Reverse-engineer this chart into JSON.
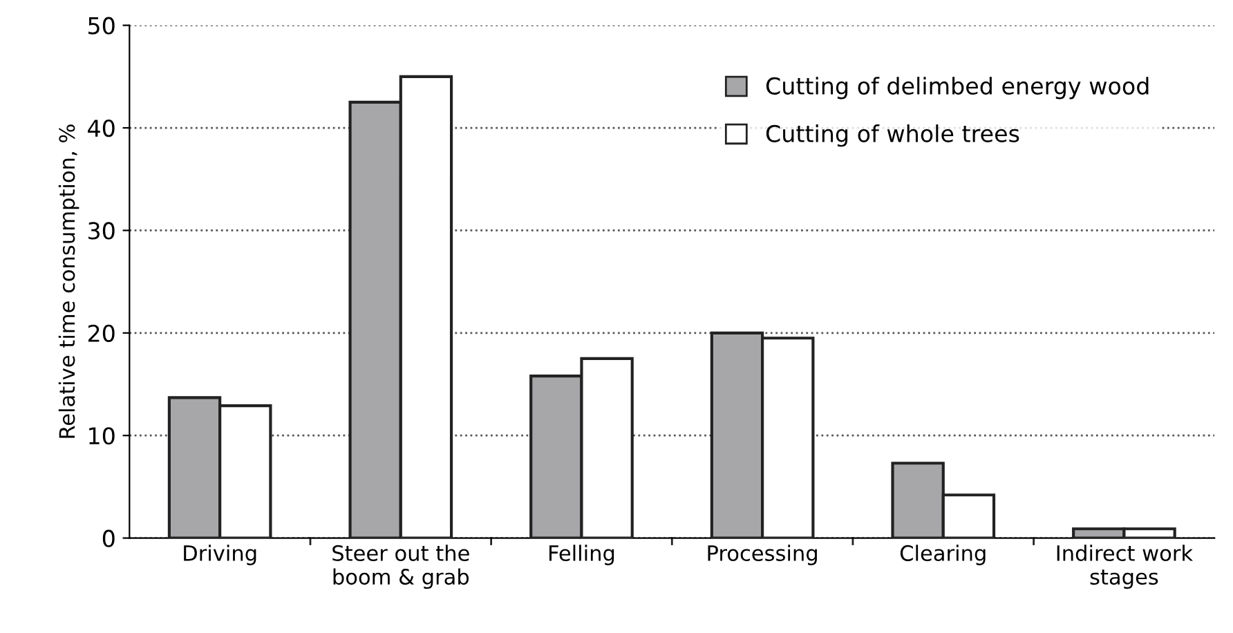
{
  "chart_data": {
    "type": "bar",
    "ylabel": "Relative time consumption, %",
    "categories": [
      "Driving",
      "Steer out the\nboom & grab",
      "Felling",
      "Processing",
      "Clearing",
      "Indirect work\nstages"
    ],
    "series": [
      {
        "name": "Cutting of delimbed energy wood",
        "color": "#a7a7aa",
        "values": [
          13.7,
          42.5,
          15.8,
          20,
          7.3,
          0.9
        ]
      },
      {
        "name": "Cutting of whole trees",
        "color": "#ffffff",
        "values": [
          12.9,
          45,
          17.5,
          19.5,
          4.2,
          0.9
        ]
      }
    ],
    "ylim": [
      0,
      50
    ],
    "yticks": [
      0,
      10,
      20,
      30,
      40,
      50
    ],
    "grid": "y",
    "legend": "top right"
  }
}
